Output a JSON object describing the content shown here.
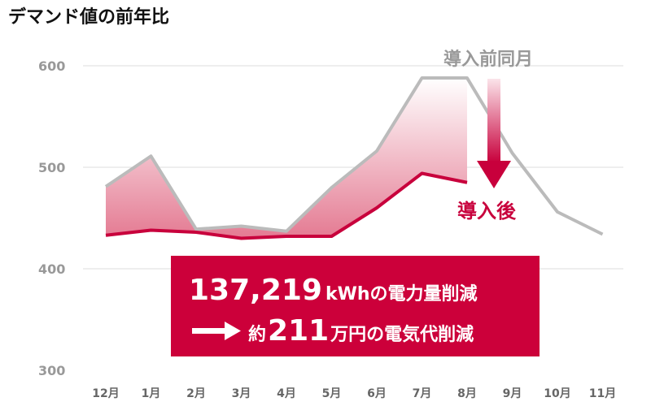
{
  "chart_data": {
    "type": "line",
    "title": "デマンド値の前年比",
    "categories": [
      "12月",
      "1月",
      "2月",
      "3月",
      "4月",
      "5月",
      "6月",
      "7月",
      "8月",
      "9月",
      "10月",
      "11月"
    ],
    "series": [
      {
        "name": "導入前同月",
        "values": [
          481,
          511,
          439,
          442,
          437,
          480,
          516,
          588,
          588,
          514,
          456,
          434
        ],
        "color": "#bbbbbb"
      },
      {
        "name": "導入後",
        "values": [
          433,
          438,
          436,
          430,
          432,
          432,
          460,
          494,
          485,
          null,
          null,
          null
        ],
        "color": "#c8003c"
      }
    ],
    "ylim": [
      300,
      600
    ],
    "yticks": [
      300,
      400,
      500,
      600
    ],
    "grid": true,
    "fill_between": "gradient pink between series",
    "annotations": {
      "before_label": "導入前同月",
      "after_label": "導入後",
      "box_line1_number": "137,219",
      "box_line1_unit": "kWh",
      "box_line1_rest": "の電力量削減",
      "box_line2_prefix": "約",
      "box_line2_number": "211",
      "box_line2_rest": "万円の電気代削減",
      "box_color": "#cc003a"
    }
  }
}
